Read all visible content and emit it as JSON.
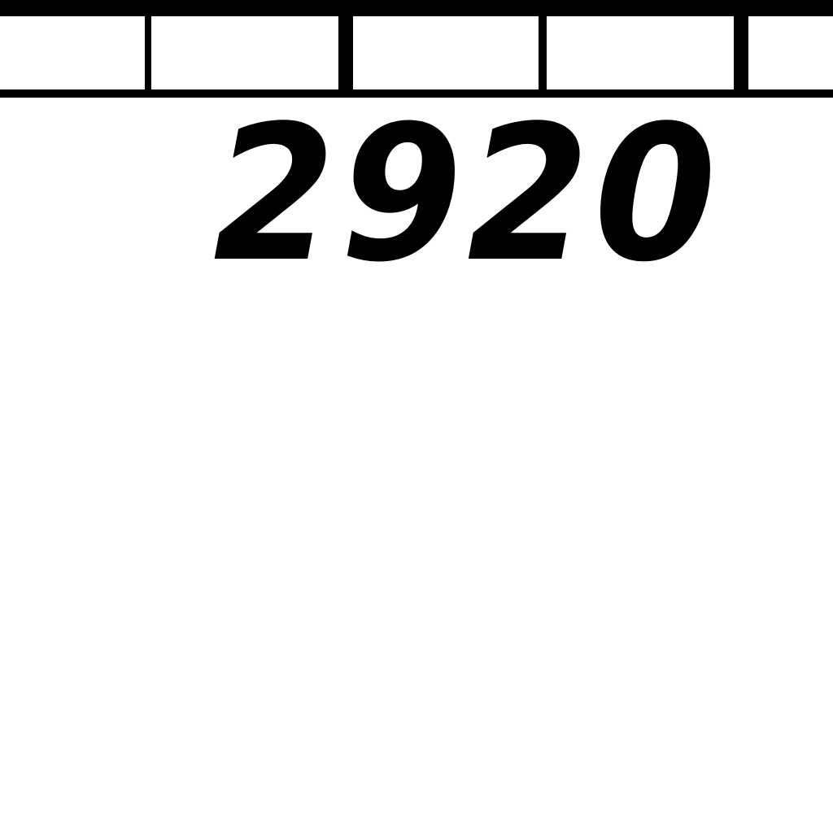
{
  "scale": {
    "label": "2920",
    "color": "#000000"
  }
}
